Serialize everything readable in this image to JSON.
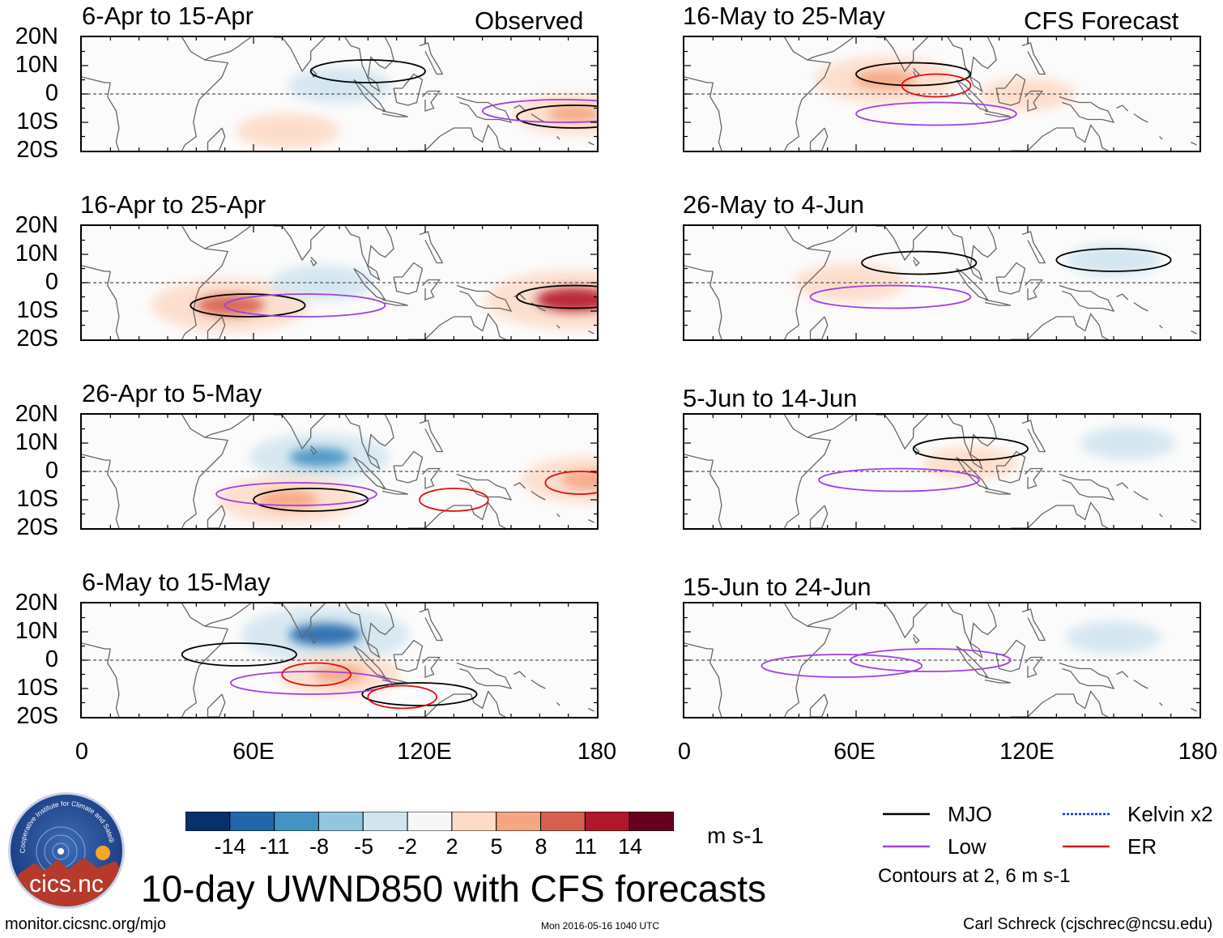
{
  "header": {
    "observed_label": "Observed",
    "forecast_label": "CFS Forecast"
  },
  "panels": [
    {
      "title": "6-Apr to 15-Apr"
    },
    {
      "title": "16-Apr to 25-Apr"
    },
    {
      "title": "26-Apr to 5-May"
    },
    {
      "title": "6-May to 15-May"
    },
    {
      "title": "16-May to 25-May"
    },
    {
      "title": "26-May to 4-Jun"
    },
    {
      "title": "5-Jun to 14-Jun"
    },
    {
      "title": "15-Jun to 24-Jun"
    }
  ],
  "axes": {
    "lat_ticks": [
      "20N",
      "10N",
      "0",
      "10S",
      "20S"
    ],
    "lon_ticks": [
      "0",
      "60E",
      "120E",
      "180"
    ]
  },
  "colorbar": {
    "colors": [
      "#08306b",
      "#2166ac",
      "#4393c3",
      "#92c5de",
      "#d1e5f0",
      "#f7f7f7",
      "#fddbc7",
      "#f4a582",
      "#d6604d",
      "#b2182b",
      "#67001f"
    ],
    "ticks": [
      "-14",
      "-11",
      "-8",
      "-5",
      "-2",
      "2",
      "5",
      "8",
      "11",
      "14"
    ],
    "units": "m s-1"
  },
  "title": "10-day UWND850 with CFS forecasts",
  "legend": {
    "items": [
      {
        "label": "MJO",
        "color": "#000000"
      },
      {
        "label": "Low",
        "color": "#a040e0"
      },
      {
        "label": "Kelvin x2",
        "color": "#1030d0"
      },
      {
        "label": "ER",
        "color": "#e01010"
      }
    ],
    "note": "Contours at 2, 6 m s-1"
  },
  "logo": {
    "text": "cics.nc",
    "arc_text": "Cooperative Institute for Climate and Satellites"
  },
  "footer": {
    "url": "monitor.cicsnc.org/mjo",
    "timestamp": "Mon 2016-05-16 1040 UTC",
    "credit": "Carl Schreck (cjschrec@ncsu.edu)"
  },
  "chart_data": {
    "type": "heatmap",
    "title": "10-day UWND850 with CFS forecasts",
    "variable": "850-hPa zonal wind anomaly",
    "units": "m s-1",
    "lon_range": [
      0,
      180
    ],
    "lat_range": [
      -20,
      20
    ],
    "contour_levels": [
      2,
      6
    ],
    "panels": [
      {
        "period": "6-Apr to 15-Apr",
        "source": "Observed",
        "features": [
          {
            "kind": "shade",
            "lon": 172,
            "lat": -7,
            "value": 6
          },
          {
            "kind": "shade",
            "lon": 90,
            "lat": 3,
            "value": -4
          },
          {
            "kind": "shade",
            "lon": 72,
            "lat": -13,
            "value": 4
          },
          {
            "kind": "contour",
            "type": "MJO",
            "lon": 100,
            "lat": 8
          },
          {
            "kind": "contour",
            "type": "MJO",
            "lon": 172,
            "lat": -8
          },
          {
            "kind": "contour",
            "type": "Low",
            "lon": 168,
            "lat": -6
          }
        ]
      },
      {
        "period": "16-Apr to 25-Apr",
        "source": "Observed",
        "features": [
          {
            "kind": "shade",
            "lon": 172,
            "lat": -6,
            "value": 12
          },
          {
            "kind": "shade",
            "lon": 52,
            "lat": -8,
            "value": 10
          },
          {
            "kind": "shade",
            "lon": 84,
            "lat": 0,
            "value": -4
          },
          {
            "kind": "contour",
            "type": "MJO",
            "lon": 172,
            "lat": -5
          },
          {
            "kind": "contour",
            "type": "MJO",
            "lon": 58,
            "lat": -8
          },
          {
            "kind": "contour",
            "type": "Low",
            "lon": 78,
            "lat": -8
          }
        ]
      },
      {
        "period": "26-Apr to 5-May",
        "source": "Observed",
        "features": [
          {
            "kind": "shade",
            "lon": 83,
            "lat": 5,
            "value": -8
          },
          {
            "kind": "shade",
            "lon": 72,
            "lat": -10,
            "value": 8
          },
          {
            "kind": "shade",
            "lon": 178,
            "lat": -3,
            "value": 8
          },
          {
            "kind": "contour",
            "type": "MJO",
            "lon": 80,
            "lat": -10
          },
          {
            "kind": "contour",
            "type": "Low",
            "lon": 75,
            "lat": -8
          },
          {
            "kind": "contour",
            "type": "ER",
            "lon": 130,
            "lat": -10
          },
          {
            "kind": "contour",
            "type": "ER",
            "lon": 174,
            "lat": -4
          }
        ]
      },
      {
        "period": "6-May to 15-May",
        "source": "Observed",
        "features": [
          {
            "kind": "shade",
            "lon": 85,
            "lat": 9,
            "value": -11
          },
          {
            "kind": "shade",
            "lon": 90,
            "lat": -5,
            "value": 6
          },
          {
            "kind": "contour",
            "type": "MJO",
            "lon": 55,
            "lat": 2
          },
          {
            "kind": "contour",
            "type": "MJO",
            "lon": 118,
            "lat": -12
          },
          {
            "kind": "contour",
            "type": "Low",
            "lon": 80,
            "lat": -8
          },
          {
            "kind": "contour",
            "type": "ER",
            "lon": 82,
            "lat": -5
          },
          {
            "kind": "contour",
            "type": "ER",
            "lon": 112,
            "lat": -13
          }
        ]
      },
      {
        "period": "16-May to 25-May",
        "source": "CFS Forecast",
        "features": [
          {
            "kind": "shade",
            "lon": 70,
            "lat": 5,
            "value": 8
          },
          {
            "kind": "shade",
            "lon": 120,
            "lat": 0,
            "value": 3
          },
          {
            "kind": "contour",
            "type": "MJO",
            "lon": 80,
            "lat": 7
          },
          {
            "kind": "contour",
            "type": "Low",
            "lon": 88,
            "lat": -7
          },
          {
            "kind": "contour",
            "type": "ER",
            "lon": 88,
            "lat": 3
          }
        ]
      },
      {
        "period": "26-May to 4-Jun",
        "source": "CFS Forecast",
        "features": [
          {
            "kind": "shade",
            "lon": 58,
            "lat": 0,
            "value": 5
          },
          {
            "kind": "shade",
            "lon": 150,
            "lat": 8,
            "value": -3
          },
          {
            "kind": "contour",
            "type": "MJO",
            "lon": 82,
            "lat": 7
          },
          {
            "kind": "contour",
            "type": "MJO",
            "lon": 150,
            "lat": 8
          },
          {
            "kind": "contour",
            "type": "Low",
            "lon": 72,
            "lat": -5
          }
        ]
      },
      {
        "period": "5-Jun to 14-Jun",
        "source": "CFS Forecast",
        "features": [
          {
            "kind": "shade",
            "lon": 100,
            "lat": 3,
            "value": 3
          },
          {
            "kind": "shade",
            "lon": 155,
            "lat": 10,
            "value": -3
          },
          {
            "kind": "contour",
            "type": "MJO",
            "lon": 100,
            "lat": 8
          },
          {
            "kind": "contour",
            "type": "Low",
            "lon": 75,
            "lat": -3
          }
        ]
      },
      {
        "period": "15-Jun to 24-Jun",
        "source": "CFS Forecast",
        "features": [
          {
            "kind": "shade",
            "lon": 150,
            "lat": 8,
            "value": -3
          },
          {
            "kind": "contour",
            "type": "Low",
            "lon": 55,
            "lat": -2
          },
          {
            "kind": "contour",
            "type": "Low",
            "lon": 86,
            "lat": 0
          }
        ]
      }
    ]
  }
}
